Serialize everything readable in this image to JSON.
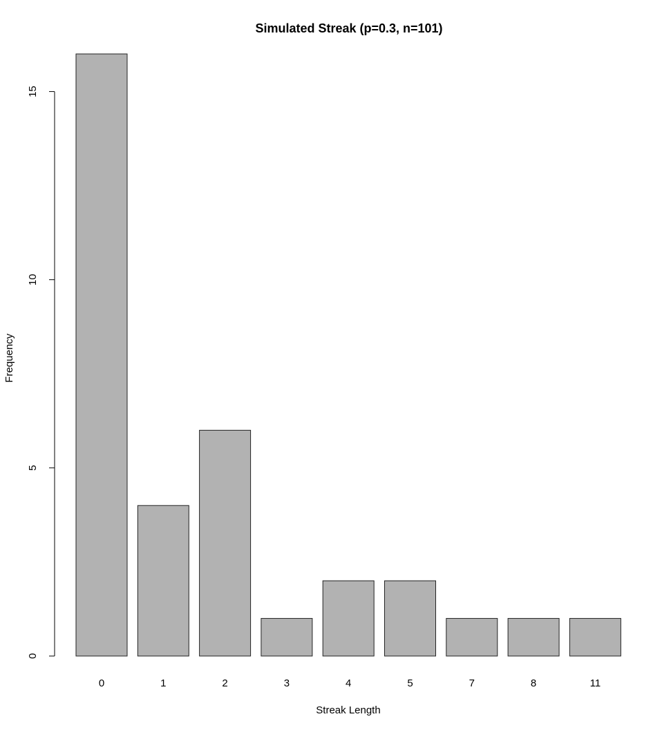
{
  "chart_data": {
    "type": "bar",
    "title": "Simulated Streak (p=0.3, n=101)",
    "xlabel": "Streak Length",
    "ylabel": "Frequency",
    "categories": [
      "0",
      "1",
      "2",
      "3",
      "4",
      "5",
      "7",
      "8",
      "11"
    ],
    "values": [
      16,
      4,
      6,
      1,
      2,
      2,
      1,
      1,
      1
    ],
    "ylim": [
      0,
      16
    ],
    "yticks": [
      0,
      5,
      10,
      15
    ],
    "grid": false,
    "bar_color": "#b2b2b2",
    "bar_border_color": "#222222"
  }
}
